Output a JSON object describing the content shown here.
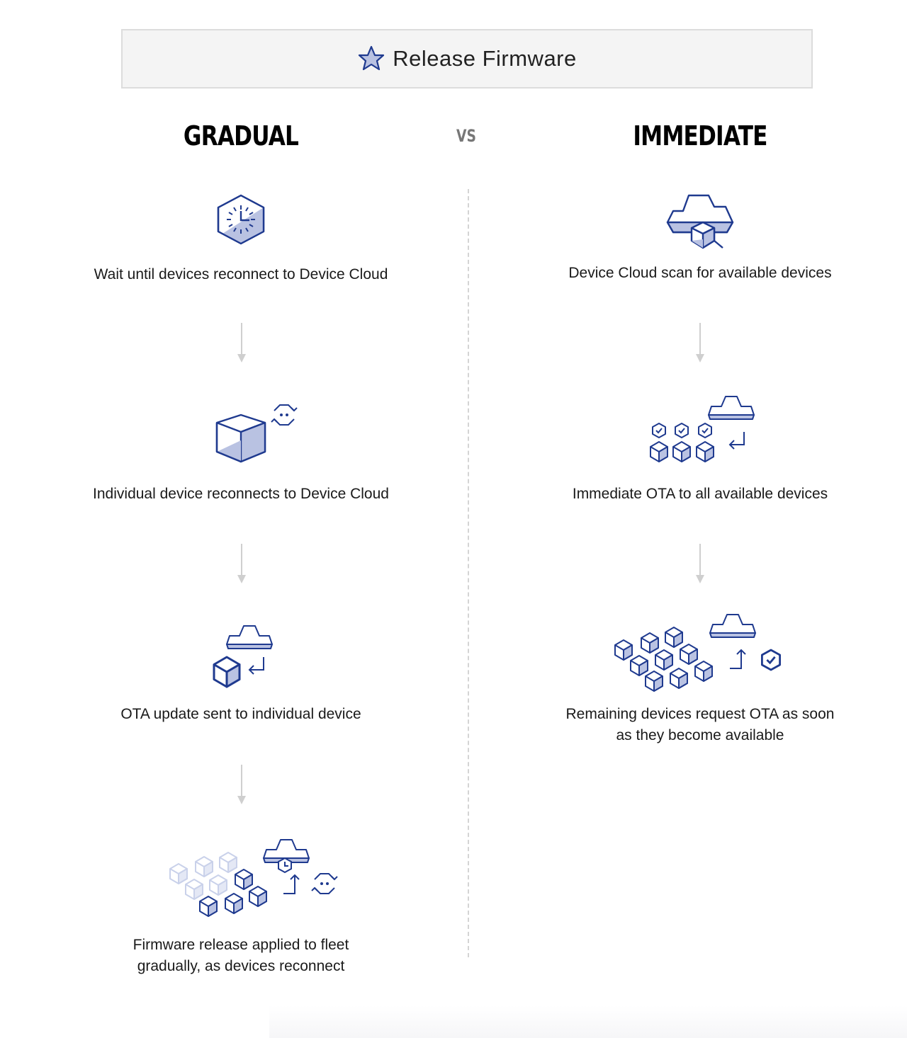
{
  "banner": {
    "icon": "star-icon",
    "title": "Release Firmware"
  },
  "columns": {
    "left_heading": "GRADUAL",
    "separator": "VS",
    "right_heading": "IMMEDIATE"
  },
  "gradual": {
    "steps": [
      {
        "icon": "clock-hexagon-icon",
        "label": "Wait until devices reconnect to Device Cloud"
      },
      {
        "icon": "cube-reconnect-icon",
        "label": "Individual device reconnects to Device Cloud"
      },
      {
        "icon": "cloud-to-device-icon",
        "label": "OTA update sent to individual device"
      },
      {
        "icon": "fleet-gradual-icon",
        "label": "Firmware release applied to fleet gradually, as devices reconnect"
      }
    ]
  },
  "immediate": {
    "steps": [
      {
        "icon": "cloud-scan-icon",
        "label": "Device Cloud scan for available devices"
      },
      {
        "icon": "cloud-to-many-devices-icon",
        "label": "Immediate OTA to all available devices"
      },
      {
        "icon": "devices-request-ota-icon",
        "label": "Remaining devices request OTA as soon as they become available"
      }
    ]
  },
  "colors": {
    "icon_stroke": "#1f3a8f",
    "icon_fill": "#b9c2e2",
    "icon_faded": "#c9d1ea",
    "arrow": "#cfcfcf",
    "divider": "#d4d4d4",
    "banner_bg": "#f4f4f4"
  }
}
